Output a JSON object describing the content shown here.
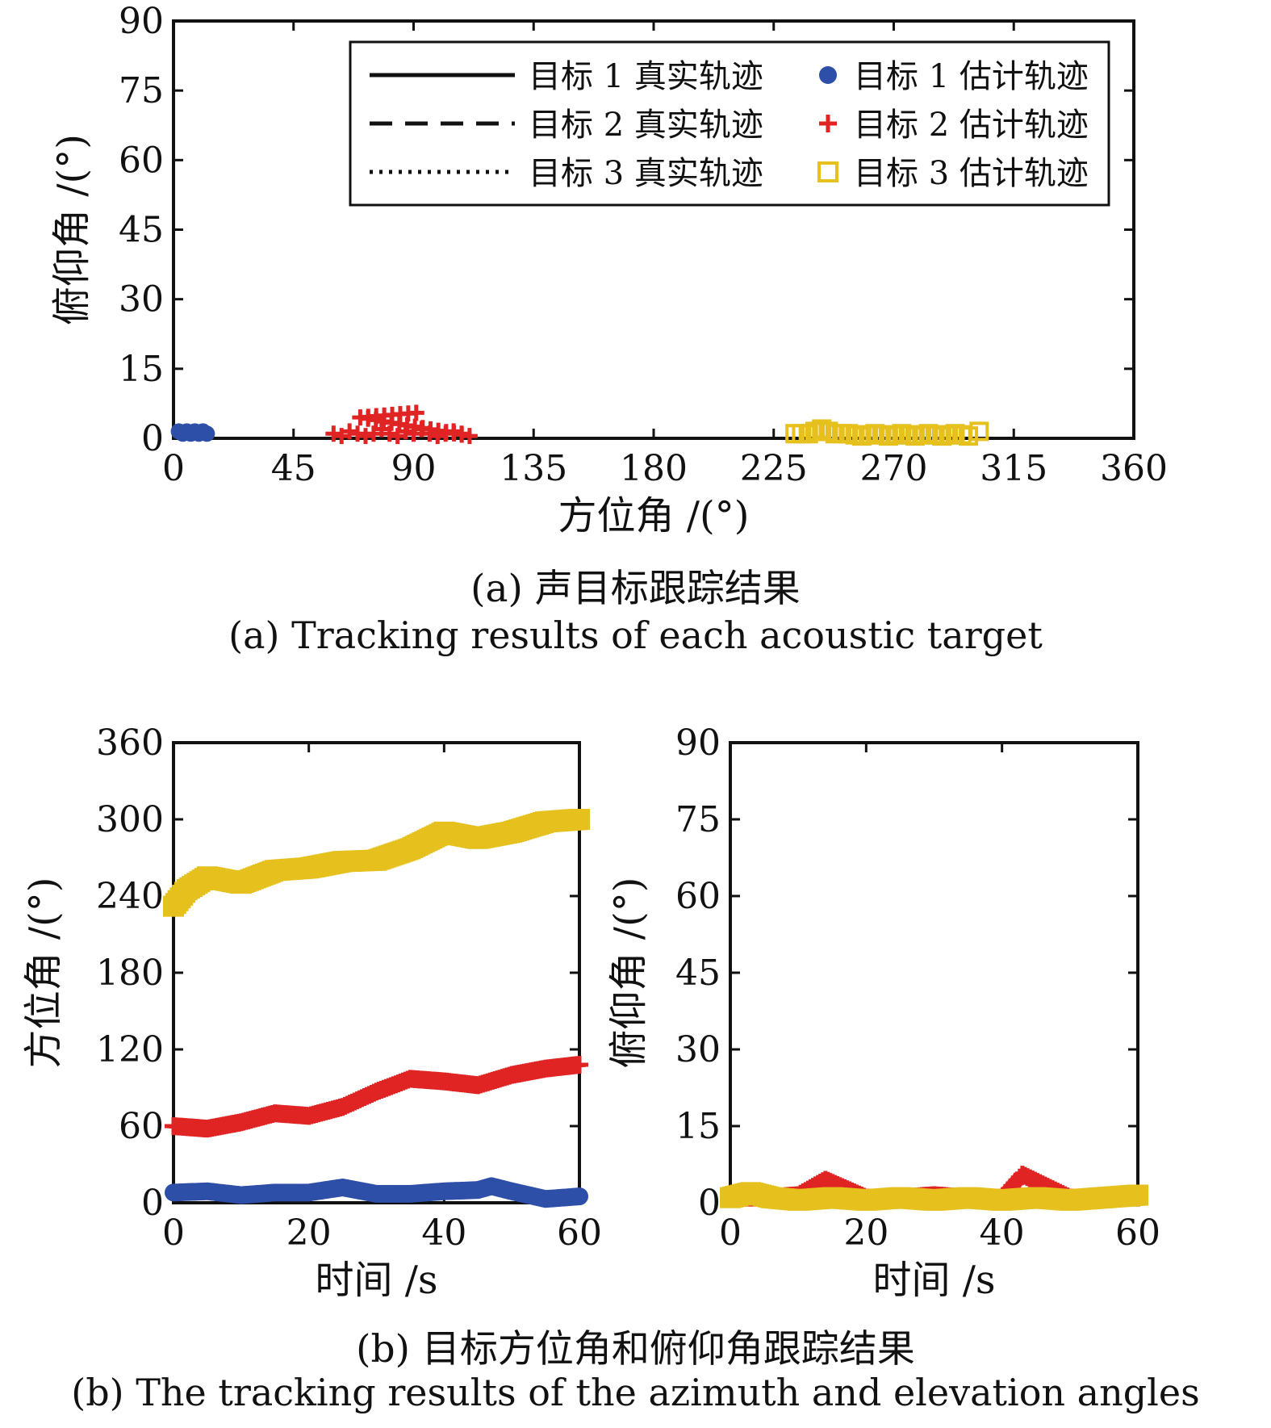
{
  "figure": {
    "caption_a_cn": "(a) 声目标跟踪结果",
    "caption_a_en": "(a) Tracking results of each acoustic target",
    "caption_b_cn": "(b) 目标方位角和俯仰角跟踪结果",
    "caption_b_en": "(b) The tracking results of the azimuth and elevation angles"
  },
  "colors": {
    "target1": "#2e4fa8",
    "target2": "#e02424",
    "target3": "#e6c11e",
    "axis": "#111111"
  },
  "chart_data": [
    {
      "type": "scatter",
      "panel": "a",
      "xlabel": "方位角 /(°)",
      "ylabel": "俯仰角 /(°)",
      "xlim": [
        0,
        360
      ],
      "ylim": [
        0,
        90
      ],
      "xticks": [
        0,
        45,
        90,
        135,
        180,
        225,
        270,
        315,
        360
      ],
      "yticks": [
        0,
        15,
        30,
        45,
        60,
        75,
        90
      ],
      "legend_position": "top-right",
      "legend": [
        {
          "label": "目标 1 真实轨迹",
          "style": "solid"
        },
        {
          "label": "目标 1 估计轨迹",
          "style": "dot",
          "color": "#2e4fa8"
        },
        {
          "label": "目标 2 真实轨迹",
          "style": "dashed"
        },
        {
          "label": "目标 2 估计轨迹",
          "style": "plus",
          "color": "#e02424"
        },
        {
          "label": "目标 3 真实轨迹",
          "style": "dotted"
        },
        {
          "label": "目标 3 估计轨迹",
          "style": "square",
          "color": "#e6c11e"
        }
      ],
      "series": [
        {
          "name": "目标 1 估计轨迹",
          "marker": "dot",
          "x": [
            2,
            3.5,
            5,
            6.5,
            8,
            9.5,
            11,
            12.5
          ],
          "y": [
            1.5,
            1.0,
            1.5,
            1.0,
            1.5,
            1.0,
            1.5,
            1.0
          ]
        },
        {
          "name": "目标 2 估计轨迹",
          "marker": "plus",
          "x": [
            60,
            63,
            66,
            69,
            72,
            75,
            78,
            81,
            84,
            87,
            90,
            93,
            96,
            99,
            102,
            105,
            108,
            111,
            70,
            91
          ],
          "y": [
            1,
            0.5,
            1.5,
            1,
            0.5,
            1,
            2,
            1,
            0.5,
            1.5,
            1,
            2,
            1,
            0.5,
            1,
            1.5,
            1,
            0.5,
            4.5,
            5.5
          ]
        },
        {
          "name": "目标 3 估计轨迹",
          "marker": "square",
          "x": [
            233,
            238,
            243,
            248,
            253,
            258,
            263,
            268,
            273,
            278,
            283,
            288,
            293,
            298,
            302
          ],
          "y": [
            1,
            1,
            2,
            1,
            1,
            0.5,
            1,
            0.5,
            1,
            0.5,
            1,
            0.5,
            1,
            0.5,
            1.5
          ]
        }
      ]
    },
    {
      "type": "scatter",
      "panel": "b-left",
      "xlabel": "时间 /s",
      "ylabel": "方位角 /(°)",
      "xlim": [
        0,
        60
      ],
      "ylim": [
        0,
        360
      ],
      "xticks": [
        0,
        20,
        40,
        60
      ],
      "yticks": [
        0,
        60,
        120,
        180,
        240,
        300,
        360
      ],
      "series": [
        {
          "name": "目标 1 估计轨迹",
          "marker": "dot",
          "x": [
            0,
            5,
            10,
            15,
            20,
            25,
            30,
            35,
            40,
            45,
            47,
            50,
            55,
            60
          ],
          "y": [
            8,
            9,
            6,
            8,
            8,
            12,
            7,
            7,
            9,
            10,
            13,
            9,
            3,
            5
          ]
        },
        {
          "name": "目标 2 估计轨迹",
          "marker": "plus",
          "x": [
            0,
            5,
            10,
            15,
            20,
            25,
            30,
            35,
            40,
            45,
            50,
            55,
            60
          ],
          "y": [
            60,
            58,
            63,
            70,
            68,
            75,
            87,
            97,
            95,
            92,
            100,
            105,
            108
          ]
        },
        {
          "name": "目标 3 估计轨迹",
          "marker": "square",
          "x": [
            0,
            2,
            5,
            10,
            15,
            20,
            25,
            30,
            35,
            40,
            45,
            50,
            55,
            60
          ],
          "y": [
            232,
            245,
            255,
            250,
            260,
            262,
            267,
            268,
            277,
            290,
            285,
            290,
            298,
            300
          ]
        }
      ]
    },
    {
      "type": "scatter",
      "panel": "b-right",
      "xlabel": "时间 /s",
      "ylabel": "俯仰角 /(°)",
      "xlim": [
        0,
        60
      ],
      "ylim": [
        0,
        90
      ],
      "xticks": [
        0,
        20,
        40,
        60
      ],
      "yticks": [
        0,
        15,
        30,
        45,
        60,
        75,
        90
      ],
      "series": [
        {
          "name": "目标 2 估计轨迹",
          "marker": "plus",
          "x": [
            0,
            5,
            10,
            14,
            20,
            25,
            30,
            35,
            40,
            43,
            50,
            55,
            60
          ],
          "y": [
            1,
            1,
            1.5,
            4.5,
            1,
            1,
            1.5,
            1,
            1,
            5.5,
            1,
            1,
            1
          ]
        },
        {
          "name": "目标 3 估计轨迹",
          "marker": "square",
          "x": [
            0,
            3,
            6,
            10,
            15,
            20,
            25,
            30,
            35,
            40,
            45,
            50,
            55,
            60
          ],
          "y": [
            1,
            2,
            1,
            0.5,
            1,
            0.5,
            1,
            0.5,
            1,
            0.5,
            1,
            0.5,
            1,
            1.5
          ]
        }
      ]
    }
  ]
}
